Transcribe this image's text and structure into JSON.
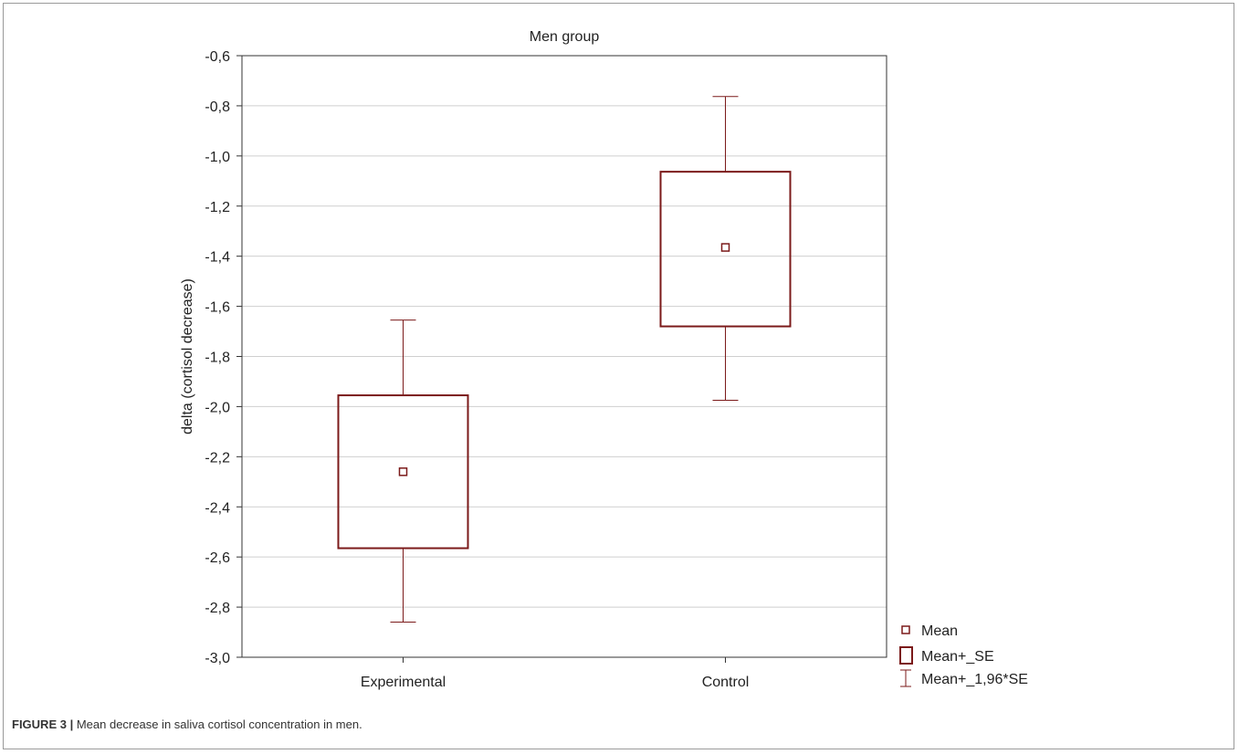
{
  "figure": {
    "label": "FIGURE 3 |",
    "caption": "Mean decrease in saliva cortisol concentration in men."
  },
  "colors": {
    "series": "#7b1a1a",
    "grid": "#cfcfcf",
    "axis": "#333333"
  },
  "chart_data": {
    "type": "box",
    "title": "Men group",
    "xlabel": "",
    "ylabel": "delta (cortisol decrease)",
    "ylim": [
      -3.0,
      -0.6
    ],
    "yticks": [
      -0.6,
      -0.8,
      -1.0,
      -1.2,
      -1.4,
      -1.6,
      -1.8,
      -2.0,
      -2.2,
      -2.4,
      -2.6,
      -2.8,
      -3.0
    ],
    "ytick_labels": [
      "-0,6",
      "-0,8",
      "-1,0",
      "-1,2",
      "-1,4",
      "-1,6",
      "-1,8",
      "-2,0",
      "-2,2",
      "-2,4",
      "-2,6",
      "-2,8",
      "-3,0"
    ],
    "categories": [
      "Experimental",
      "Control"
    ],
    "grid": true,
    "legend_position": "bottom-right, outside plot",
    "legend": [
      "Mean",
      "Mean+_SE",
      "Mean+_1,96*SE"
    ],
    "groups": [
      {
        "name": "Experimental",
        "mean": -2.26,
        "se_low": -2.565,
        "se_high": -1.955,
        "ci_low": -2.86,
        "ci_high": -1.655
      },
      {
        "name": "Control",
        "mean": -1.365,
        "se_low": -1.68,
        "se_high": -1.063,
        "ci_low": -1.975,
        "ci_high": -0.763
      }
    ]
  }
}
